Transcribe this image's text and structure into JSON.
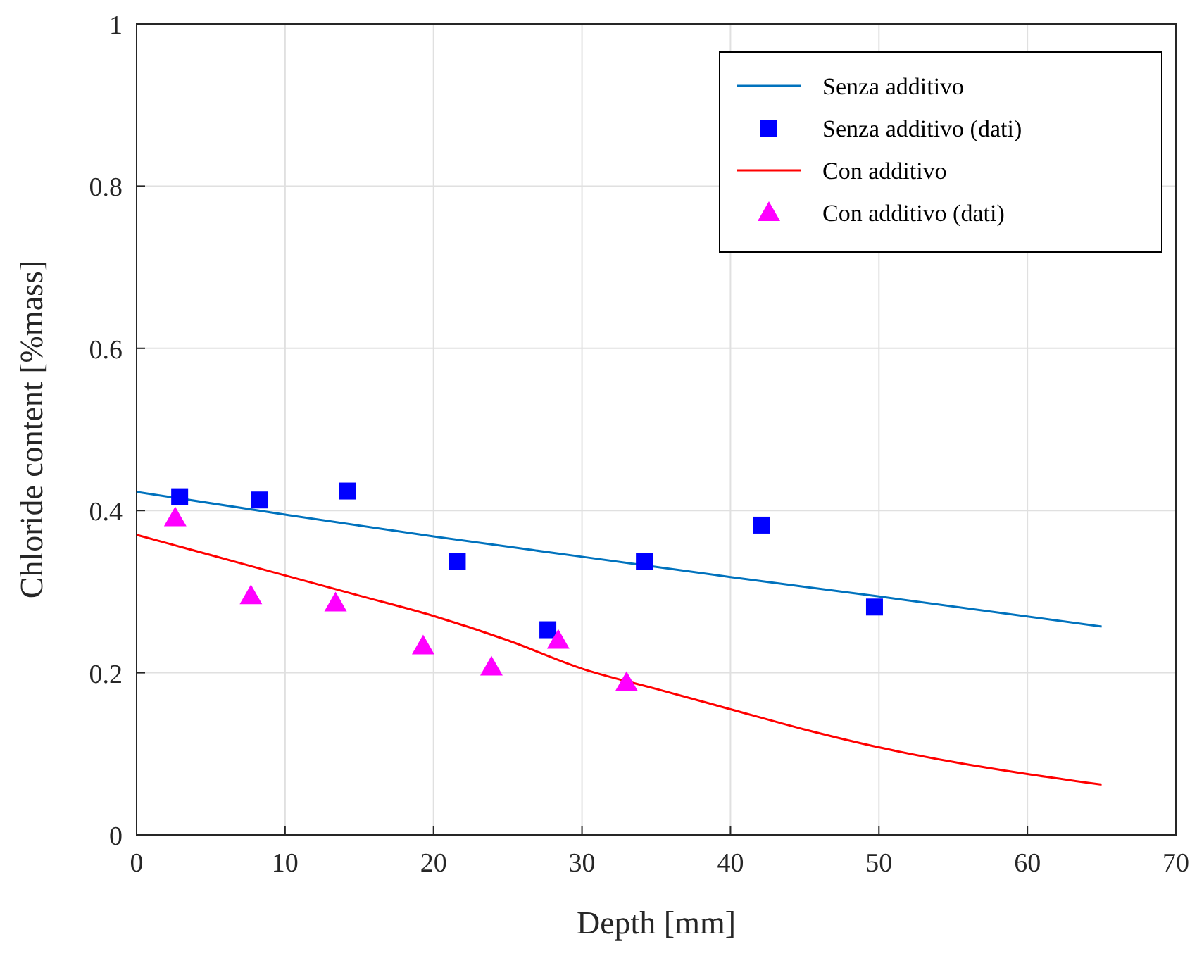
{
  "chart_data": {
    "type": "line",
    "xlabel": "Depth [mm]",
    "ylabel": "Chloride content [%mass]",
    "xlim": [
      0,
      70
    ],
    "ylim": [
      0,
      1
    ],
    "xticks": [
      0,
      10,
      20,
      30,
      40,
      50,
      60,
      70
    ],
    "yticks": [
      0,
      0.2,
      0.4,
      0.6,
      0.8,
      1
    ],
    "grid": true,
    "legend": "top right",
    "series": [
      {
        "name": "Senza additivo",
        "color": "#0072bd",
        "marker": "none",
        "x": [
          0,
          10,
          20,
          30,
          40,
          50,
          65
        ],
        "values": [
          0.423,
          0.395,
          0.368,
          0.343,
          0.318,
          0.294,
          0.257
        ]
      },
      {
        "name": "Senza additivo (dati)",
        "type": "scatter",
        "color": "#0000ff",
        "marker": "square",
        "x": [
          2.9,
          8.3,
          14.2,
          21.6,
          27.7,
          34.2,
          42.1,
          49.7
        ],
        "values": [
          0.417,
          0.413,
          0.424,
          0.337,
          0.253,
          0.337,
          0.382,
          0.281
        ]
      },
      {
        "name": "Con additivo",
        "color": "#ff0000",
        "marker": "none",
        "x": [
          0,
          5,
          10,
          15,
          20,
          25,
          30,
          35,
          40,
          45,
          50,
          55,
          60,
          65
        ],
        "values": [
          0.37,
          0.345,
          0.32,
          0.295,
          0.27,
          0.24,
          0.205,
          0.18,
          0.155,
          0.13,
          0.108,
          0.09,
          0.075,
          0.062
        ]
      },
      {
        "name": "Con additivo (dati)",
        "type": "scatter",
        "color": "#ff00ff",
        "marker": "triangle",
        "x": [
          2.6,
          7.7,
          13.4,
          19.3,
          23.9,
          28.4,
          33.0
        ],
        "values": [
          0.391,
          0.295,
          0.286,
          0.233,
          0.207,
          0.24,
          0.188
        ]
      }
    ]
  }
}
